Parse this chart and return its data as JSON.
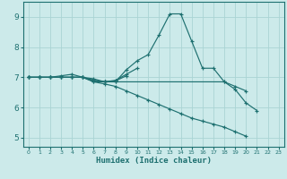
{
  "xlabel": "Humidex (Indice chaleur)",
  "ylabel": "",
  "background_color": "#cceaea",
  "grid_color": "#aad4d4",
  "line_color": "#1e7070",
  "xlim": [
    -0.5,
    23.5
  ],
  "ylim": [
    4.7,
    9.5
  ],
  "xticks": [
    0,
    1,
    2,
    3,
    4,
    5,
    6,
    7,
    8,
    9,
    10,
    11,
    12,
    13,
    14,
    15,
    16,
    17,
    18,
    19,
    20,
    21,
    22,
    23
  ],
  "yticks": [
    5,
    6,
    7,
    8,
    9
  ],
  "series": [
    {
      "x": [
        0,
        1,
        2,
        3,
        4,
        5,
        6,
        7,
        8,
        9,
        10,
        11,
        12,
        13,
        14,
        15,
        16,
        17,
        18,
        19,
        20,
        21
      ],
      "y": [
        7.0,
        7.0,
        7.0,
        7.05,
        7.1,
        7.0,
        6.85,
        6.85,
        6.85,
        7.25,
        7.55,
        7.75,
        8.4,
        9.1,
        9.1,
        8.2,
        7.3,
        7.3,
        6.85,
        6.6,
        6.15,
        5.9
      ]
    },
    {
      "x": [
        0,
        1,
        2,
        3,
        4,
        5,
        6,
        7,
        8,
        9,
        10
      ],
      "y": [
        7.0,
        7.0,
        7.0,
        7.0,
        7.0,
        7.0,
        6.9,
        6.85,
        6.9,
        7.1,
        7.3
      ]
    },
    {
      "x": [
        0,
        1,
        2,
        3,
        4,
        5,
        6,
        7,
        8,
        9
      ],
      "y": [
        7.0,
        7.0,
        7.0,
        7.0,
        7.0,
        7.0,
        6.95,
        6.85,
        6.88,
        7.05
      ]
    },
    {
      "x": [
        0,
        1,
        2,
        3,
        4,
        5,
        6,
        7,
        8,
        18,
        19,
        20
      ],
      "y": [
        7.0,
        7.0,
        7.0,
        7.0,
        7.0,
        7.0,
        6.9,
        6.85,
        6.85,
        6.85,
        6.7,
        6.55
      ]
    },
    {
      "x": [
        0,
        1,
        2,
        3,
        4,
        5,
        6,
        7,
        8,
        9,
        10,
        11,
        12,
        13,
        14,
        15,
        16,
        17,
        18,
        19,
        20
      ],
      "y": [
        7.0,
        7.0,
        7.0,
        7.0,
        7.0,
        7.0,
        6.85,
        6.78,
        6.7,
        6.55,
        6.4,
        6.25,
        6.1,
        5.95,
        5.8,
        5.65,
        5.55,
        5.45,
        5.35,
        5.2,
        5.05
      ]
    }
  ]
}
